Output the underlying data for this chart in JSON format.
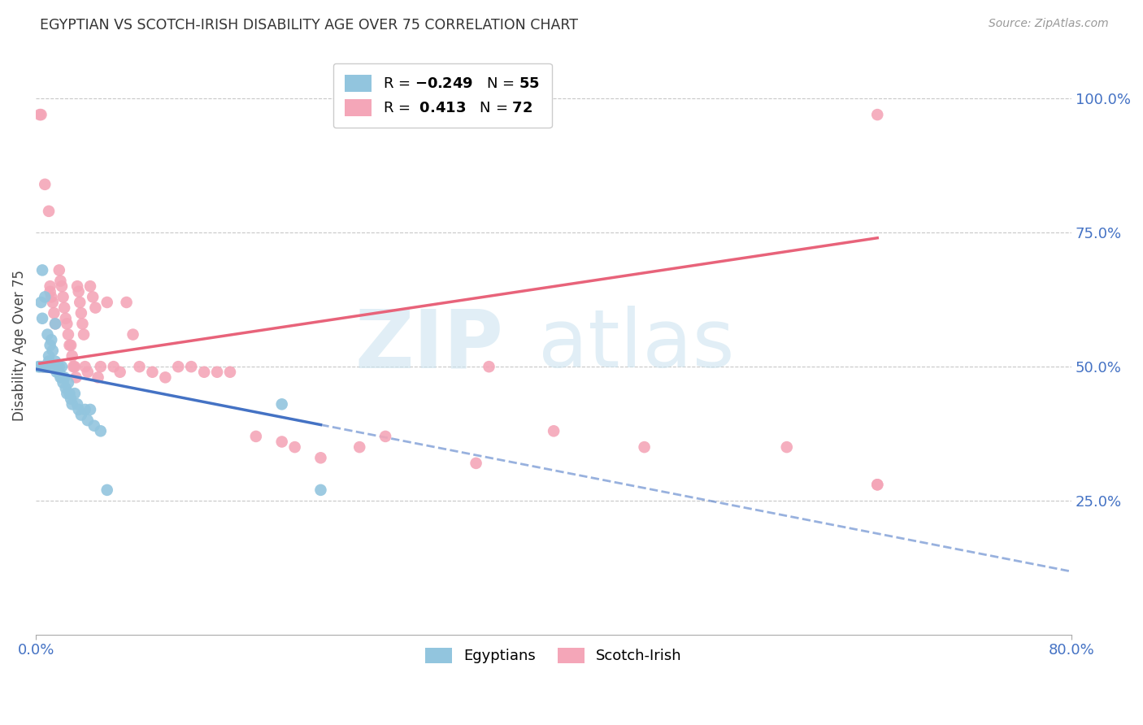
{
  "title": "EGYPTIAN VS SCOTCH-IRISH DISABILITY AGE OVER 75 CORRELATION CHART",
  "source": "Source: ZipAtlas.com",
  "ylabel": "Disability Age Over 75",
  "right_yticks": [
    "100.0%",
    "75.0%",
    "50.0%",
    "25.0%"
  ],
  "right_ytick_vals": [
    1.0,
    0.75,
    0.5,
    0.25
  ],
  "xlim": [
    0.0,
    0.8
  ],
  "ylim": [
    0.0,
    1.08
  ],
  "grid_color": "#c8c8c8",
  "background_color": "#ffffff",
  "egyptian_color": "#92c5de",
  "scotch_irish_color": "#f4a6b8",
  "egyptian_line_color": "#4472c4",
  "scotch_irish_line_color": "#e8637a",
  "egyptian_R": -0.249,
  "egyptian_N": 55,
  "scotch_irish_R": 0.413,
  "scotch_irish_N": 72,
  "egyptian_x": [
    0.002,
    0.003,
    0.004,
    0.004,
    0.005,
    0.005,
    0.006,
    0.006,
    0.007,
    0.007,
    0.008,
    0.008,
    0.009,
    0.009,
    0.01,
    0.01,
    0.01,
    0.01,
    0.011,
    0.011,
    0.012,
    0.012,
    0.013,
    0.013,
    0.014,
    0.015,
    0.015,
    0.016,
    0.016,
    0.017,
    0.018,
    0.018,
    0.019,
    0.02,
    0.02,
    0.021,
    0.022,
    0.023,
    0.024,
    0.025,
    0.026,
    0.027,
    0.028,
    0.03,
    0.032,
    0.033,
    0.035,
    0.038,
    0.04,
    0.042,
    0.045,
    0.05,
    0.055,
    0.19,
    0.22
  ],
  "egyptian_y": [
    0.5,
    0.5,
    0.62,
    0.5,
    0.68,
    0.59,
    0.5,
    0.5,
    0.63,
    0.5,
    0.5,
    0.5,
    0.56,
    0.5,
    0.52,
    0.51,
    0.5,
    0.5,
    0.54,
    0.5,
    0.55,
    0.5,
    0.53,
    0.5,
    0.5,
    0.58,
    0.51,
    0.5,
    0.49,
    0.5,
    0.5,
    0.49,
    0.48,
    0.5,
    0.48,
    0.47,
    0.48,
    0.46,
    0.45,
    0.47,
    0.45,
    0.44,
    0.43,
    0.45,
    0.43,
    0.42,
    0.41,
    0.42,
    0.4,
    0.42,
    0.39,
    0.38,
    0.27,
    0.43,
    0.27
  ],
  "scotch_x": [
    0.003,
    0.004,
    0.005,
    0.006,
    0.007,
    0.008,
    0.008,
    0.009,
    0.01,
    0.01,
    0.011,
    0.011,
    0.012,
    0.013,
    0.014,
    0.015,
    0.016,
    0.017,
    0.018,
    0.019,
    0.02,
    0.021,
    0.022,
    0.023,
    0.024,
    0.025,
    0.026,
    0.027,
    0.028,
    0.029,
    0.03,
    0.031,
    0.032,
    0.033,
    0.034,
    0.035,
    0.036,
    0.037,
    0.038,
    0.04,
    0.042,
    0.044,
    0.046,
    0.048,
    0.05,
    0.055,
    0.06,
    0.065,
    0.07,
    0.075,
    0.08,
    0.09,
    0.1,
    0.11,
    0.12,
    0.13,
    0.14,
    0.15,
    0.17,
    0.19,
    0.2,
    0.22,
    0.25,
    0.27,
    0.34,
    0.35,
    0.4,
    0.47,
    0.58,
    0.65,
    0.65,
    0.65
  ],
  "scotch_y": [
    0.97,
    0.97,
    0.5,
    0.5,
    0.84,
    0.5,
    0.5,
    0.5,
    0.79,
    0.5,
    0.65,
    0.64,
    0.63,
    0.62,
    0.6,
    0.58,
    0.5,
    0.5,
    0.68,
    0.66,
    0.65,
    0.63,
    0.61,
    0.59,
    0.58,
    0.56,
    0.54,
    0.54,
    0.52,
    0.5,
    0.5,
    0.48,
    0.65,
    0.64,
    0.62,
    0.6,
    0.58,
    0.56,
    0.5,
    0.49,
    0.65,
    0.63,
    0.61,
    0.48,
    0.5,
    0.62,
    0.5,
    0.49,
    0.62,
    0.56,
    0.5,
    0.49,
    0.48,
    0.5,
    0.5,
    0.49,
    0.49,
    0.49,
    0.37,
    0.36,
    0.35,
    0.33,
    0.35,
    0.37,
    0.32,
    0.5,
    0.38,
    0.35,
    0.35,
    0.97,
    0.28,
    0.28
  ]
}
